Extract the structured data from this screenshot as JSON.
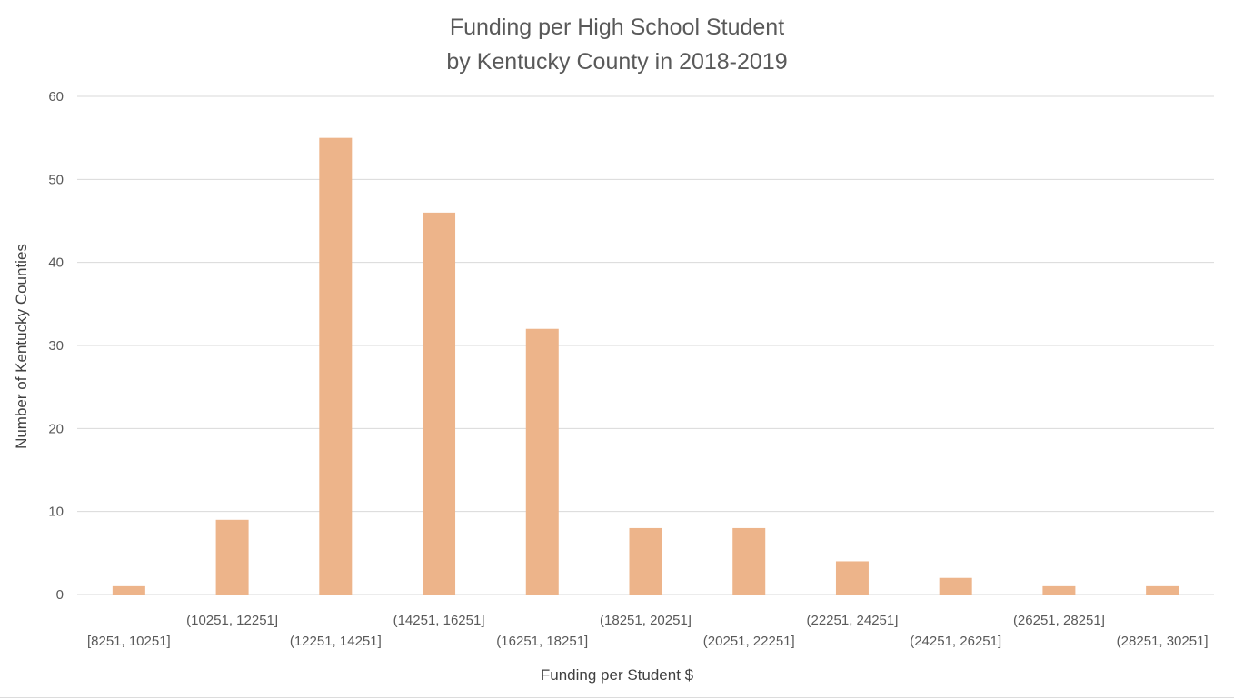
{
  "chart_data": {
    "type": "bar",
    "title_lines": [
      "Funding per High School Student",
      "by Kentucky County in 2018-2019"
    ],
    "xlabel": "Funding per Student $",
    "ylabel": "Number of Kentucky Counties",
    "categories": [
      "[8251, 10251]",
      "(10251, 12251]",
      "(12251, 14251]",
      "(14251, 16251]",
      "(16251, 18251]",
      "(18251, 20251]",
      "(20251, 22251]",
      "(22251, 24251]",
      "(24251, 26251]",
      "(26251, 28251]",
      "(28251, 30251]"
    ],
    "values": [
      1,
      9,
      55,
      46,
      32,
      8,
      8,
      4,
      2,
      1,
      1
    ],
    "ylim": [
      0,
      60
    ],
    "yticks": [
      0,
      10,
      20,
      30,
      40,
      50,
      60
    ],
    "grid": true,
    "legend": "none",
    "colors": {
      "bar": "#EDB48A",
      "grid": "#d9d9d9",
      "tick_text": "#595959"
    }
  }
}
